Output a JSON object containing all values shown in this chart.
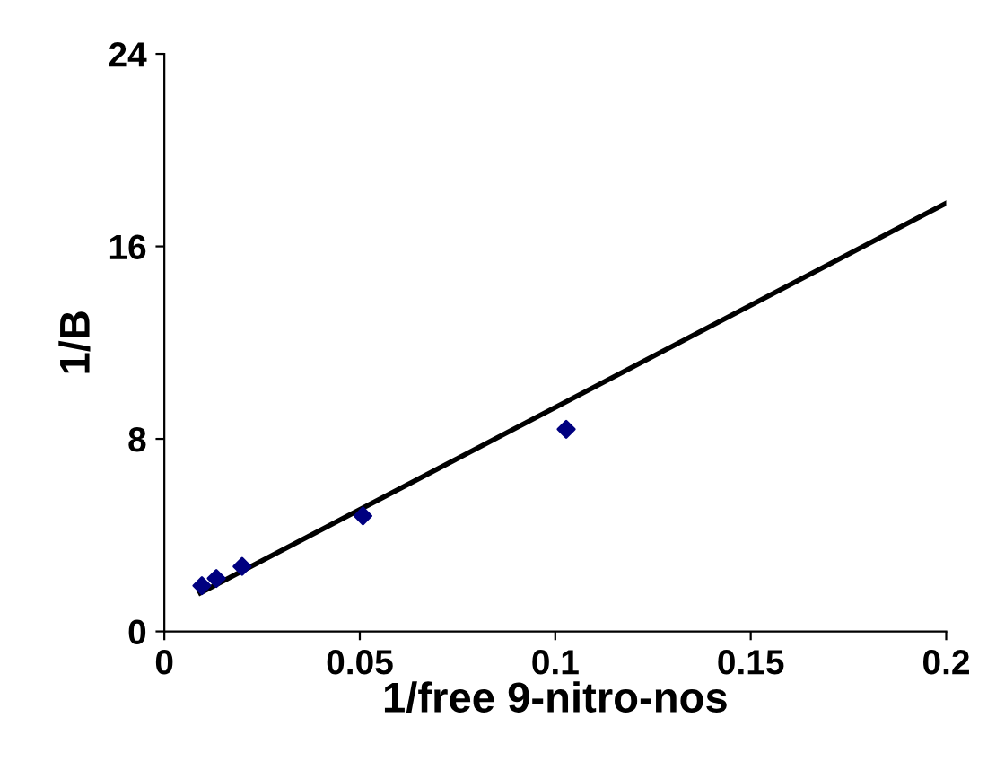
{
  "chart_data": {
    "type": "scatter",
    "xlabel": "1/free 9-nitro-nos",
    "ylabel": "1/B",
    "xlim": [
      0,
      0.2
    ],
    "xticks": [
      0,
      {
        "value": 0.05,
        "label": "0.05"
      },
      {
        "value": 0.1,
        "label": "0.1"
      },
      {
        "value": 0.15,
        "label": "0.15"
      },
      {
        "value": 0.2,
        "label": "0.2"
      }
    ],
    "ylim": [
      0,
      24
    ],
    "yticks": [
      0,
      8,
      16,
      24
    ],
    "grid": false,
    "legend": false,
    "series": [
      {
        "color": "#000080",
        "marker": "diamond",
        "x": [
          0.0096,
          0.0133,
          0.0199,
          0.0508,
          0.1028
        ],
        "values": [
          1.9,
          2.2,
          2.7,
          4.8,
          8.4
        ]
      },
      {
        "type": "line",
        "color": "#000000",
        "marker": "none",
        "line_style": "solid",
        "x": [
          0.0092,
          0.2
        ],
        "values": [
          1.6,
          17.8
        ]
      }
    ]
  }
}
